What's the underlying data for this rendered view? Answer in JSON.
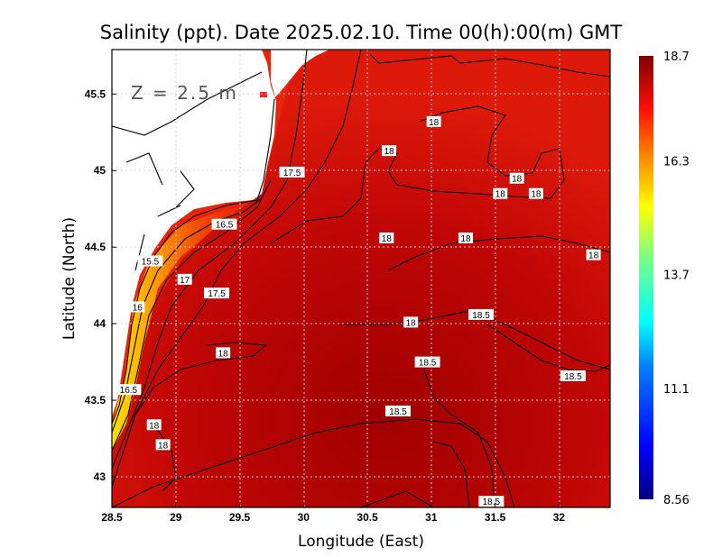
{
  "chart_data": {
    "type": "heatmap",
    "title": "Salinity (ppt). Date 2025.02.10. Time 00(h):00(m) GMT",
    "annotation": "Z = 2.5 m",
    "xlabel": "Longitude (East)",
    "ylabel": "Latitude (North)",
    "xlim": [
      28.5,
      32.4
    ],
    "ylim": [
      42.8,
      45.79
    ],
    "xticks": [
      "28.5",
      "29",
      "29.5",
      "30",
      "30.5",
      "31",
      "31.5",
      "32"
    ],
    "xtick_values": [
      28.5,
      29,
      29.5,
      30,
      30.5,
      31,
      31.5,
      32
    ],
    "yticks": [
      "45.5",
      "45",
      "44.5",
      "44",
      "43.5",
      "43"
    ],
    "ytick_values": [
      45.5,
      45,
      44.5,
      44,
      43.5,
      43
    ],
    "grid": true,
    "colorbar": {
      "min": 8.56,
      "max": 18.7,
      "labels": [
        "18.7",
        "16.3",
        "13.7",
        "11.1",
        "8.56"
      ],
      "label_values": [
        18.7,
        16.3,
        13.7,
        11.1,
        8.56
      ],
      "colormap": [
        "#00007f",
        "#0000ff",
        "#0080ff",
        "#00ffff",
        "#80ff80",
        "#ffff00",
        "#ff8000",
        "#ff0000",
        "#7f0000"
      ]
    },
    "contour_labels": [
      {
        "text": "18",
        "lon": 31.02,
        "lat": 45.32
      },
      {
        "text": "18",
        "lon": 30.67,
        "lat": 45.13
      },
      {
        "text": "18",
        "lon": 31.67,
        "lat": 44.95
      },
      {
        "text": "18",
        "lon": 31.54,
        "lat": 44.85
      },
      {
        "text": "18",
        "lon": 31.82,
        "lat": 44.85
      },
      {
        "text": "17.5",
        "lon": 29.91,
        "lat": 44.99
      },
      {
        "text": "16.5",
        "lon": 29.38,
        "lat": 44.65
      },
      {
        "text": "18",
        "lon": 30.65,
        "lat": 44.56
      },
      {
        "text": "18",
        "lon": 31.27,
        "lat": 44.56
      },
      {
        "text": "18",
        "lon": 32.27,
        "lat": 44.45
      },
      {
        "text": "15.5",
        "lon": 28.8,
        "lat": 44.41
      },
      {
        "text": "17",
        "lon": 29.07,
        "lat": 44.29
      },
      {
        "text": "17.5",
        "lon": 29.32,
        "lat": 44.2
      },
      {
        "text": "16",
        "lon": 28.7,
        "lat": 44.11
      },
      {
        "text": "18.5",
        "lon": 31.39,
        "lat": 44.06
      },
      {
        "text": "18",
        "lon": 30.84,
        "lat": 44.01
      },
      {
        "text": "18",
        "lon": 29.37,
        "lat": 43.81
      },
      {
        "text": "18.5",
        "lon": 30.97,
        "lat": 43.75
      },
      {
        "text": "18.5",
        "lon": 32.11,
        "lat": 43.66
      },
      {
        "text": "16.5",
        "lon": 28.63,
        "lat": 43.57
      },
      {
        "text": "18.5",
        "lon": 30.74,
        "lat": 43.43
      },
      {
        "text": "18",
        "lon": 28.83,
        "lat": 43.34
      },
      {
        "text": "18",
        "lon": 28.9,
        "lat": 43.21
      },
      {
        "text": "18.5",
        "lon": 31.47,
        "lat": 42.84
      }
    ]
  }
}
